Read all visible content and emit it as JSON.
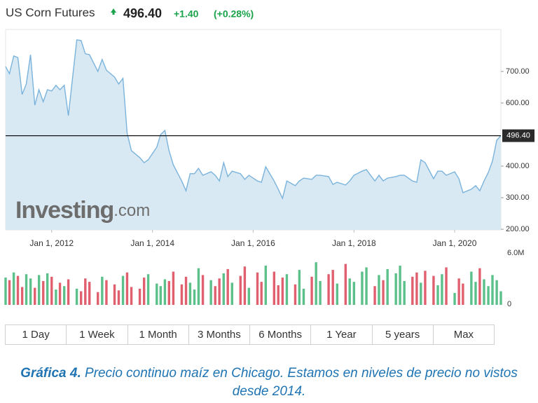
{
  "header": {
    "title": "US Corn Futures",
    "price": "496.40",
    "change": "+1.40",
    "change_pct": "(+0.28%)"
  },
  "chart_data": {
    "type": "area",
    "x": [
      "2011-02-01",
      "2011-03-01",
      "2011-04-01",
      "2011-05-01",
      "2011-06-01",
      "2011-07-01",
      "2011-08-01",
      "2011-09-01",
      "2011-10-01",
      "2011-11-01",
      "2011-12-01",
      "2012-01-01",
      "2012-02-01",
      "2012-03-01",
      "2012-04-01",
      "2012-05-01",
      "2012-07-01",
      "2012-08-01",
      "2012-09-01",
      "2012-10-01",
      "2012-12-01",
      "2013-01-01",
      "2013-02-01",
      "2013-04-01",
      "2013-05-01",
      "2013-06-01",
      "2013-07-01",
      "2013-08-01",
      "2013-10-01",
      "2013-11-01",
      "2013-12-01",
      "2014-02-01",
      "2014-03-01",
      "2014-04-01",
      "2014-05-01",
      "2014-06-01",
      "2014-08-01",
      "2014-09-01",
      "2014-10-01",
      "2014-11-01",
      "2014-12-01",
      "2015-01-01",
      "2015-03-01",
      "2015-04-01",
      "2015-05-01",
      "2015-06-01",
      "2015-07-01",
      "2015-08-01",
      "2015-10-01",
      "2015-11-01",
      "2015-12-01",
      "2016-02-01",
      "2016-03-01",
      "2016-04-01",
      "2016-06-01",
      "2016-07-01",
      "2016-08-01",
      "2016-09-01",
      "2016-11-01",
      "2016-12-01",
      "2017-01-01",
      "2017-03-01",
      "2017-04-01",
      "2017-05-01",
      "2017-07-01",
      "2017-08-01",
      "2017-09-01",
      "2017-11-01",
      "2017-12-01",
      "2018-01-01",
      "2018-03-01",
      "2018-04-01",
      "2018-06-01",
      "2018-07-01",
      "2018-08-01",
      "2018-09-01",
      "2018-11-01",
      "2018-12-01",
      "2019-01-01",
      "2019-03-01",
      "2019-04-01",
      "2019-05-01",
      "2019-06-01",
      "2019-08-01",
      "2019-09-01",
      "2019-10-01",
      "2019-11-01",
      "2020-01-01",
      "2020-02-01",
      "2020-03-01",
      "2020-05-01",
      "2020-06-01",
      "2020-07-01",
      "2020-08-01",
      "2020-09-01",
      "2020-10-01",
      "2020-11-01",
      "2020-12-01"
    ],
    "values": [
      715,
      693,
      749,
      744,
      627,
      660,
      753,
      593,
      642,
      604,
      642,
      638,
      656,
      642,
      656,
      560,
      800,
      798,
      756,
      753,
      700,
      738,
      704,
      682,
      660,
      678,
      504,
      449,
      427,
      411,
      420,
      460,
      500,
      513,
      449,
      404,
      353,
      322,
      376,
      376,
      393,
      371,
      382,
      371,
      353,
      411,
      367,
      384,
      376,
      358,
      371,
      353,
      349,
      398,
      353,
      327,
      298,
      353,
      338,
      353,
      362,
      358,
      371,
      371,
      367,
      342,
      349,
      340,
      353,
      371,
      384,
      389,
      353,
      371,
      353,
      362,
      367,
      371,
      371,
      353,
      349,
      420,
      411,
      360,
      384,
      384,
      371,
      382,
      360,
      316,
      327,
      338,
      322,
      353,
      380,
      416,
      482,
      496.4
    ],
    "color": "#7ab3dc",
    "fill": "#d9e9f3",
    "xlim": [
      "2011-02-01",
      "2020-12-01"
    ],
    "xticks": [
      {
        "value": "2012-01-01",
        "label": "Jan 1, 2012"
      },
      {
        "value": "2014-01-01",
        "label": "Jan 1, 2014"
      },
      {
        "value": "2016-01-01",
        "label": "Jan 1, 2016"
      },
      {
        "value": "2018-01-01",
        "label": "Jan 1, 2018"
      },
      {
        "value": "2020-01-01",
        "label": "Jan 1, 2020"
      }
    ],
    "ylim": [
      198,
      833
    ],
    "yticks": [
      {
        "value": 200,
        "label": "200.00"
      },
      {
        "value": 300,
        "label": "300.00"
      },
      {
        "value": 400,
        "label": "400.00"
      },
      {
        "value": 600,
        "label": "600.00"
      },
      {
        "value": 700,
        "label": "700.00"
      }
    ],
    "current_line": {
      "value": 496.4,
      "label": "496.40"
    },
    "watermark": {
      "brand": "Investing",
      "suffix": ".com"
    },
    "volume": {
      "values": [
        3200000,
        2900000,
        3800000,
        3400000,
        2100000,
        3600000,
        3100000,
        2000000,
        3500000,
        2800000,
        3700000,
        3300000,
        1800000,
        2600000,
        2200000,
        3000000,
        1900000,
        1600000,
        3100000,
        2700000,
        1500000,
        3300000,
        2900000,
        2400000,
        1700000,
        3400000,
        3800000,
        2100000,
        1900000,
        3200000,
        3600000,
        2500000,
        2200000,
        3000000,
        2800000,
        3900000,
        2400000,
        3300000,
        2600000,
        1800000,
        4300000,
        3500000,
        2900000,
        2200000,
        3100000,
        3700000,
        4200000,
        2600000,
        3400000,
        4500000,
        2000000,
        3800000,
        2700000,
        4600000,
        3900000,
        2300000,
        3200000,
        3600000,
        2400000,
        4100000,
        1900000,
        3300000,
        5000000,
        2800000,
        3600000,
        4100000,
        2500000,
        4800000,
        3100000,
        2700000,
        3900000,
        4400000,
        2200000,
        3500000,
        2900000,
        4200000,
        3700000,
        4600000,
        2800000,
        3300000,
        3800000,
        2600000,
        4000000,
        3400000,
        2300000,
        3600000,
        4400000,
        1400000,
        3100000,
        2500000,
        3900000,
        2700000,
        4300000,
        3000000,
        2200000,
        3500000,
        2900000,
        1600000
      ],
      "up_color": "#5cc08b",
      "down_color": "#e0606f",
      "ylim": [
        0,
        6000000
      ],
      "yticks": [
        0,
        {
          "value": 6000000,
          "label": "6.0M"
        }
      ]
    }
  },
  "range_buttons": [
    "1 Day",
    "1 Week",
    "1 Month",
    "3 Months",
    "6 Months",
    "1 Year",
    "5 years",
    "Max"
  ],
  "caption": {
    "label": "Gráfica 4.",
    "text": "Precio continuo maíz en Chicago. Estamos en niveles de precio no vistos desde 2014."
  }
}
